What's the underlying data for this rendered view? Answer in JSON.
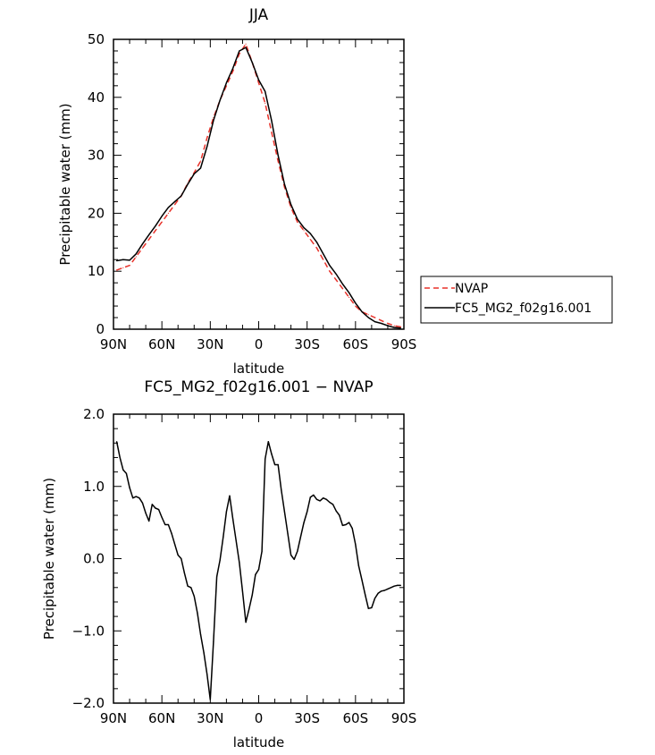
{
  "chart_data": [
    {
      "type": "line",
      "title": "JJA",
      "xlabel": "latitude",
      "ylabel": "Precipitable water (mm)",
      "ylim": [
        0,
        50
      ],
      "yticks": [
        "0",
        "10",
        "20",
        "30",
        "40",
        "50"
      ],
      "xticks": [
        "90N",
        "60N",
        "30N",
        "0",
        "30S",
        "60S",
        "90S"
      ],
      "x_range": [
        90,
        -90
      ],
      "legend_position": "right",
      "series": [
        {
          "name": "NVAP",
          "color": "#e8322a",
          "dash": "dashed",
          "x": [
            88,
            84,
            80,
            76,
            72,
            68,
            64,
            60,
            56,
            52,
            48,
            44,
            40,
            36,
            32,
            28,
            24,
            20,
            16,
            12,
            8,
            4,
            0,
            -4,
            -8,
            -12,
            -16,
            -20,
            -24,
            -28,
            -32,
            -36,
            -40,
            -44,
            -48,
            -52,
            -56,
            -60,
            -64,
            -68,
            -72,
            -76,
            -80,
            -84,
            -88
          ],
          "values": [
            10.2,
            10.6,
            11.0,
            12.5,
            14.0,
            15.5,
            17.0,
            18.5,
            20.0,
            21.5,
            23.0,
            25.2,
            27.0,
            29.0,
            33.0,
            36.5,
            39.5,
            42.0,
            44.5,
            47.5,
            49.2,
            46.0,
            42.5,
            39.0,
            34.0,
            29.0,
            24.5,
            21.0,
            18.5,
            17.0,
            15.5,
            14.0,
            12.0,
            10.0,
            8.5,
            7.0,
            5.5,
            4.0,
            3.0,
            2.5,
            2.0,
            1.5,
            1.0,
            0.6,
            0.4
          ]
        },
        {
          "name": "FC5_MG2_f02g16.001",
          "color": "#000000",
          "dash": "solid",
          "x": [
            88,
            84,
            80,
            76,
            72,
            68,
            64,
            60,
            56,
            52,
            48,
            44,
            40,
            36,
            32,
            28,
            24,
            20,
            16,
            12,
            8,
            4,
            0,
            -4,
            -8,
            -12,
            -16,
            -20,
            -24,
            -28,
            -32,
            -36,
            -40,
            -44,
            -48,
            -52,
            -56,
            -60,
            -64,
            -68,
            -72,
            -76,
            -80,
            -84,
            -88
          ],
          "values": [
            11.8,
            12.0,
            11.9,
            13.0,
            14.7,
            16.3,
            17.8,
            19.5,
            21.0,
            22.0,
            23.0,
            25.0,
            26.8,
            27.8,
            31.5,
            36.0,
            39.5,
            42.5,
            45.0,
            48.0,
            48.6,
            46.0,
            43.0,
            41.0,
            36.0,
            30.0,
            25.0,
            21.5,
            19.0,
            17.5,
            16.5,
            15.0,
            13.0,
            11.0,
            9.5,
            7.8,
            6.3,
            4.5,
            3.0,
            2.0,
            1.3,
            1.0,
            0.6,
            0.3,
            0.2
          ]
        }
      ]
    },
    {
      "type": "line",
      "title": "FC5_MG2_f02g16.001 − NVAP",
      "xlabel": "latitude",
      "ylabel": "Precipitable water (mm)",
      "ylim": [
        -2,
        2
      ],
      "yticks": [
        "−2.0",
        "−1.0",
        "0.0",
        "1.0",
        "2.0"
      ],
      "xticks": [
        "90N",
        "60N",
        "30N",
        "0",
        "30S",
        "60S",
        "90S"
      ],
      "x_range": [
        90,
        -90
      ],
      "series": [
        {
          "color": "#000000",
          "dash": "solid",
          "x": [
            88,
            86,
            84,
            82,
            80,
            78,
            76,
            74,
            72,
            70,
            68,
            66,
            64,
            62,
            60,
            58,
            56,
            54,
            52,
            50,
            48,
            46,
            44,
            42,
            40,
            38,
            36,
            34,
            32,
            30,
            28,
            26,
            24,
            22,
            20,
            18,
            16,
            14,
            12,
            10,
            8,
            6,
            4,
            2,
            0,
            -2,
            -4,
            -6,
            -8,
            -10,
            -12,
            -14,
            -16,
            -18,
            -20,
            -22,
            -24,
            -26,
            -28,
            -30,
            -32,
            -34,
            -36,
            -38,
            -40,
            -42,
            -44,
            -46,
            -48,
            -50,
            -52,
            -54,
            -56,
            -58,
            -60,
            -62,
            -64,
            -66,
            -68,
            -70,
            -72,
            -74,
            -76,
            -78,
            -80,
            -82,
            -84,
            -86,
            -88
          ],
          "values": [
            1.62,
            1.4,
            1.23,
            1.18,
            0.98,
            0.84,
            0.86,
            0.84,
            0.77,
            0.63,
            0.52,
            0.75,
            0.7,
            0.68,
            0.57,
            0.47,
            0.47,
            0.35,
            0.2,
            0.05,
            0.0,
            -0.2,
            -0.38,
            -0.4,
            -0.52,
            -0.75,
            -1.05,
            -1.3,
            -1.6,
            -1.95,
            -1.15,
            -0.25,
            -0.02,
            0.3,
            0.65,
            0.87,
            0.55,
            0.25,
            -0.05,
            -0.45,
            -0.88,
            -0.7,
            -0.5,
            -0.22,
            -0.15,
            0.1,
            1.38,
            1.62,
            1.45,
            1.3,
            1.3,
            0.95,
            0.65,
            0.35,
            0.05,
            -0.01,
            0.1,
            0.3,
            0.5,
            0.65,
            0.85,
            0.88,
            0.82,
            0.8,
            0.84,
            0.82,
            0.78,
            0.75,
            0.66,
            0.6,
            0.46,
            0.47,
            0.5,
            0.42,
            0.2,
            -0.1,
            -0.3,
            -0.5,
            -0.69,
            -0.68,
            -0.55,
            -0.48,
            -0.45,
            -0.44,
            -0.42,
            -0.4,
            -0.38,
            -0.37,
            -0.37
          ]
        }
      ]
    }
  ]
}
